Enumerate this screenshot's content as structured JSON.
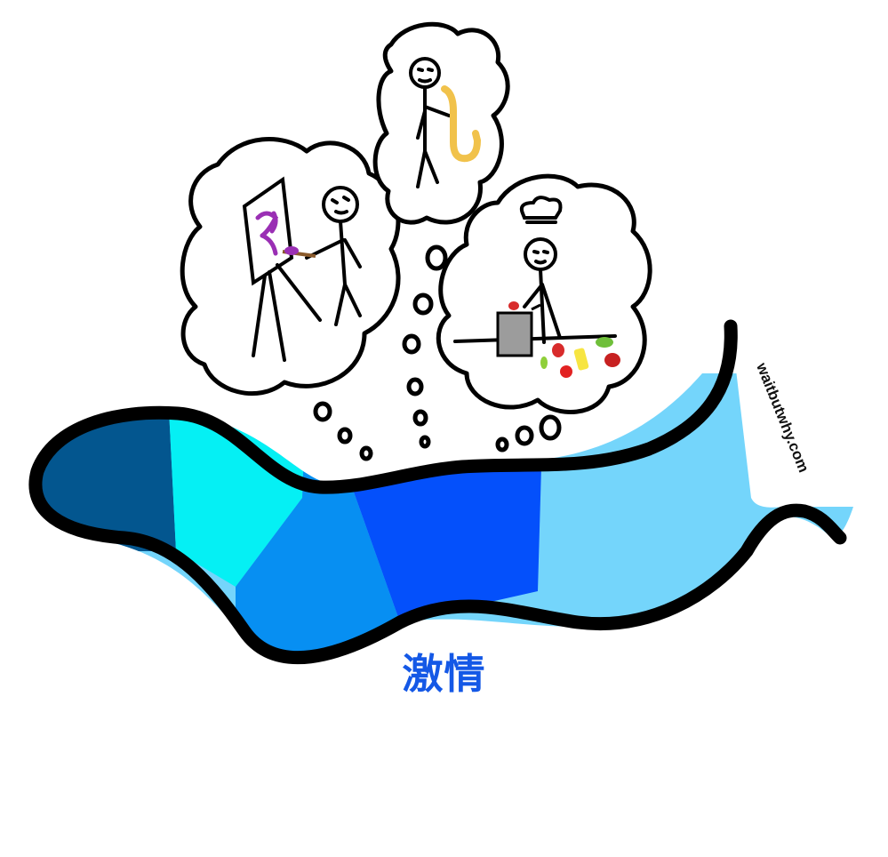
{
  "caption": "激情",
  "watermark": "waitbutwhy.com",
  "colors": {
    "segment_1": "#03568f",
    "segment_2": "#05f0f4",
    "segment_3": "#078ff2",
    "segment_4": "#0450fb",
    "segment_5": "#74d5fb",
    "caption": "#1458e6",
    "outline": "#000000",
    "paint_purple": "#9a2fb4",
    "sax_gold": "#f1c24b",
    "pot_gray": "#9c9c9c"
  },
  "icons": [
    "painter-figure-icon",
    "saxophone-player-icon",
    "chef-figure-icon",
    "thought-bubble-icon"
  ]
}
